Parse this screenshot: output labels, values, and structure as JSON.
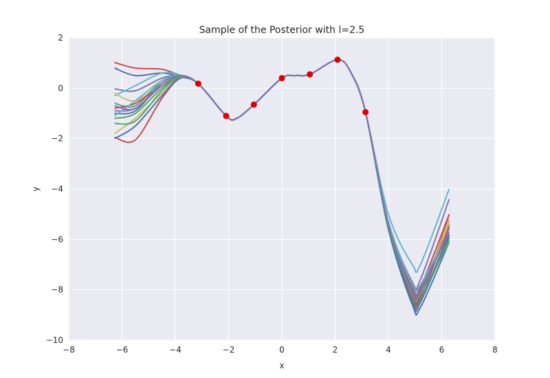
{
  "chart_data": {
    "type": "line",
    "title": "Sample of the Posterior with l=2.5",
    "xlabel": "x",
    "ylabel": "y",
    "xlim": [
      -8,
      8
    ],
    "ylim": [
      -10,
      2
    ],
    "xticks": [
      -8,
      -6,
      -4,
      -2,
      0,
      2,
      4,
      6,
      8
    ],
    "yticks": [
      2,
      0,
      -2,
      -4,
      -6,
      -8,
      -10
    ],
    "grid": true,
    "legend": "none",
    "background_color": "#eaeaf2",
    "grid_color": "#ffffff",
    "observations": {
      "color": "#dd0000",
      "x": [
        -3.14,
        -2.09,
        -1.05,
        0.0,
        1.05,
        2.09,
        3.14
      ],
      "y": [
        0.18,
        -1.1,
        -0.65,
        0.4,
        0.55,
        1.13,
        -0.95
      ]
    },
    "series": [
      {
        "color": "#c44e52",
        "values": [
          1.02,
          0.8,
          0.75,
          0.5,
          0.18,
          -1.1,
          -1.2,
          -0.65,
          0.4,
          0.5,
          0.55,
          1.13,
          0.6,
          -0.95,
          -5.5,
          -8.3,
          -8.4,
          -5.0
        ]
      },
      {
        "color": "#4c72b0",
        "values": [
          0.8,
          0.5,
          0.6,
          0.45,
          0.18,
          -1.1,
          -1.2,
          -0.65,
          0.4,
          0.5,
          0.55,
          1.13,
          0.6,
          -0.95,
          -5.6,
          -8.6,
          -8.7,
          -6.1
        ]
      },
      {
        "color": "#8172b2",
        "values": [
          -0.02,
          -0.1,
          0.4,
          0.5,
          0.18,
          -1.1,
          -1.2,
          -0.65,
          0.4,
          0.5,
          0.55,
          1.13,
          0.6,
          -0.95,
          -5.3,
          -7.7,
          -7.6,
          -4.4
        ]
      },
      {
        "color": "#64b5cd",
        "values": [
          -0.3,
          0.1,
          0.6,
          0.52,
          0.18,
          -1.1,
          -1.2,
          -0.65,
          0.4,
          0.5,
          0.55,
          1.13,
          0.6,
          -0.95,
          -5.0,
          -7.0,
          -7.0,
          -4.0
        ]
      },
      {
        "color": "#ccb974",
        "values": [
          -0.2,
          -0.5,
          0.2,
          0.48,
          0.18,
          -1.1,
          -1.2,
          -0.65,
          0.4,
          0.5,
          0.55,
          1.13,
          0.6,
          -0.95,
          -5.4,
          -8.1,
          -8.1,
          -5.2
        ]
      },
      {
        "color": "#55a868",
        "values": [
          -0.6,
          -0.7,
          0.3,
          0.5,
          0.18,
          -1.1,
          -1.2,
          -0.65,
          0.4,
          0.5,
          0.55,
          1.13,
          0.6,
          -0.95,
          -5.5,
          -8.3,
          -8.4,
          -5.8
        ]
      },
      {
        "color": "#c44e52",
        "values": [
          -0.8,
          -0.6,
          0.1,
          0.45,
          0.18,
          -1.1,
          -1.2,
          -0.65,
          0.4,
          0.5,
          0.55,
          1.13,
          0.6,
          -0.95,
          -5.4,
          -7.9,
          -7.9,
          -5.0
        ]
      },
      {
        "color": "#4c72b0",
        "values": [
          -1.0,
          -0.9,
          0.2,
          0.5,
          0.18,
          -1.1,
          -1.2,
          -0.65,
          0.4,
          0.5,
          0.55,
          1.13,
          0.6,
          -0.95,
          -5.5,
          -8.2,
          -8.3,
          -5.9
        ]
      },
      {
        "color": "#8172b2",
        "values": [
          -0.9,
          -0.8,
          0.1,
          0.48,
          0.18,
          -1.1,
          -1.2,
          -0.65,
          0.4,
          0.5,
          0.55,
          1.13,
          0.6,
          -0.95,
          -5.4,
          -8.0,
          -8.0,
          -5.4
        ]
      },
      {
        "color": "#64b5cd",
        "values": [
          -1.1,
          -0.5,
          0.3,
          0.5,
          0.18,
          -1.1,
          -1.2,
          -0.65,
          0.4,
          0.5,
          0.55,
          1.13,
          0.6,
          -0.95,
          -5.3,
          -7.8,
          -7.8,
          -5.6
        ]
      },
      {
        "color": "#ccb974",
        "values": [
          -1.8,
          -1.2,
          -0.2,
          0.42,
          0.18,
          -1.1,
          -1.2,
          -0.65,
          0.4,
          0.5,
          0.55,
          1.13,
          0.6,
          -0.95,
          -5.5,
          -8.3,
          -8.4,
          -5.3
        ]
      },
      {
        "color": "#55a868",
        "values": [
          -1.2,
          -1.0,
          0.0,
          0.45,
          0.18,
          -1.1,
          -1.2,
          -0.65,
          0.4,
          0.5,
          0.55,
          1.13,
          0.6,
          -0.95,
          -5.6,
          -8.4,
          -8.4,
          -6.0
        ]
      },
      {
        "color": "#c44e52",
        "values": [
          -1.95,
          -2.05,
          -0.4,
          0.4,
          0.18,
          -1.1,
          -1.2,
          -0.65,
          0.4,
          0.5,
          0.55,
          1.13,
          0.6,
          -0.95,
          -5.5,
          -8.3,
          -8.3,
          -5.5
        ]
      },
      {
        "color": "#4c72b0",
        "values": [
          -2.0,
          -1.5,
          -0.3,
          0.42,
          0.18,
          -1.1,
          -1.2,
          -0.65,
          0.4,
          0.5,
          0.55,
          1.13,
          0.6,
          -0.95,
          -5.6,
          -8.5,
          -8.5,
          -5.8
        ]
      },
      {
        "color": "#55a868",
        "values": [
          -1.4,
          -1.3,
          -0.1,
          0.44,
          0.18,
          -1.1,
          -1.2,
          -0.65,
          0.4,
          0.5,
          0.55,
          1.13,
          0.6,
          -0.95,
          -5.5,
          -8.2,
          -8.2,
          -6.1
        ]
      },
      {
        "color": "#8172b2",
        "values": [
          -0.7,
          -0.8,
          0.2,
          0.5,
          0.18,
          -1.1,
          -1.2,
          -0.65,
          0.4,
          0.5,
          0.55,
          1.13,
          0.6,
          -0.95,
          -5.4,
          -8.1,
          -8.1,
          -5.7
        ]
      }
    ],
    "x": [
      -6.28,
      -5.5,
      -4.5,
      -3.8,
      -3.14,
      -2.09,
      -1.7,
      -1.05,
      0.0,
      0.5,
      1.05,
      2.09,
      2.6,
      3.14,
      4.0,
      4.9,
      5.2,
      6.28
    ]
  }
}
